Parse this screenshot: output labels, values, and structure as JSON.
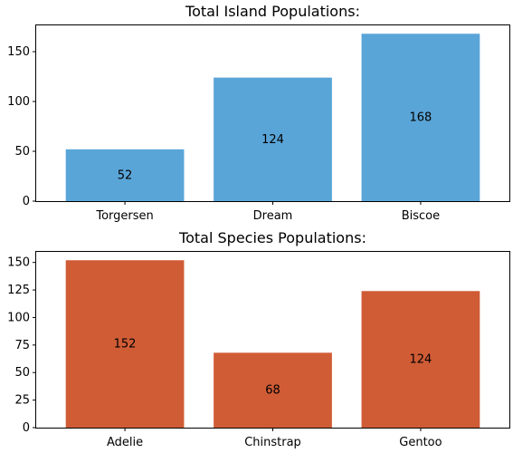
{
  "chart_data": [
    {
      "type": "bar",
      "title": "Total Island Populations:",
      "xlabel": "",
      "ylabel": "",
      "categories": [
        "Torgersen",
        "Dream",
        "Biscoe"
      ],
      "values": [
        52,
        124,
        168
      ],
      "data_labels": [
        "52",
        "124",
        "168"
      ],
      "ylim": [
        0,
        176.4
      ],
      "yticks": [
        0,
        50,
        100,
        150
      ],
      "color": "#5AA5D8",
      "grid": false,
      "legend": "none"
    },
    {
      "type": "bar",
      "title": "Total Species Populations:",
      "xlabel": "",
      "ylabel": "",
      "categories": [
        "Adelie",
        "Chinstrap",
        "Gentoo"
      ],
      "values": [
        152,
        68,
        124
      ],
      "data_labels": [
        "152",
        "68",
        "124"
      ],
      "ylim": [
        0,
        159.6
      ],
      "yticks": [
        0,
        25,
        50,
        75,
        100,
        125,
        150
      ],
      "color": "#D05C36",
      "grid": false,
      "legend": "none"
    }
  ]
}
